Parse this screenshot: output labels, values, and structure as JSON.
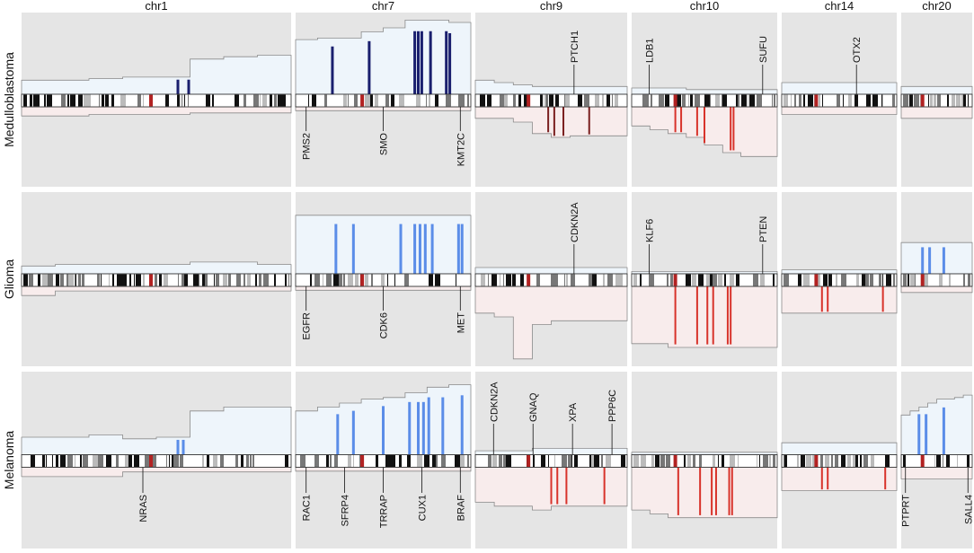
{
  "chart_data": {
    "type": "copy-number-profile",
    "title": "",
    "description_axis": "gain above / loss below chromosome ideogram",
    "chromosomes": [
      "chr1",
      "chr7",
      "chr9",
      "chr10",
      "chr14",
      "chr20"
    ],
    "rows": [
      {
        "name": "Medulloblastoma",
        "gain_color": "#1a1f6e",
        "loss_color": "#7a1f1f",
        "panels": [
          {
            "chr": "chr1",
            "gain_level": [
              0.18,
              0.18,
              0.2,
              0.22,
              0.22,
              0.45,
              0.48,
              0.5
            ],
            "loss_level": [
              0.12,
              0.12,
              0.1,
              0.1,
              0.1,
              0.08,
              0.08,
              0.08
            ],
            "gain_bars": [
              0.58,
              0.62
            ],
            "loss_bars": [],
            "genes_above": [],
            "genes_below": []
          },
          {
            "chr": "chr7",
            "gain_level": [
              0.7,
              0.72,
              0.72,
              0.8,
              0.85,
              0.95,
              0.95,
              0.92
            ],
            "loss_level": [
              0.05,
              0.05,
              0.05,
              0.05,
              0.05,
              0.05,
              0.05,
              0.05
            ],
            "gain_bars": [
              0.21,
              0.42,
              0.68,
              0.7,
              0.72,
              0.77,
              0.86,
              0.88
            ],
            "loss_bars": [],
            "genes_above": [],
            "genes_below": [
              "PMS2",
              "SMO",
              "KMT2C"
            ]
          },
          {
            "chr": "chr9",
            "gain_level": [
              0.18,
              0.15,
              0.12,
              0.1,
              0.1,
              0.1,
              0.1,
              0.1
            ],
            "loss_level": [
              0.15,
              0.15,
              0.2,
              0.35,
              0.4,
              0.38,
              0.38,
              0.38
            ],
            "gain_bars": [],
            "loss_bars": [
              0.48,
              0.52,
              0.58,
              0.75
            ],
            "genes_above": [
              "PTCH1"
            ],
            "genes_below": []
          },
          {
            "chr": "chr10",
            "gain_level": [
              0.08,
              0.08,
              0.08,
              0.06,
              0.06,
              0.06,
              0.06,
              0.06
            ],
            "loss_level": [
              0.25,
              0.3,
              0.35,
              0.4,
              0.5,
              0.6,
              0.65,
              0.65
            ],
            "gain_bars": [],
            "loss_bars": [
              0.3,
              0.34,
              0.45,
              0.5,
              0.68,
              0.7
            ],
            "genes_above": [
              "LDB1",
              "SUFU"
            ],
            "genes_below": []
          },
          {
            "chr": "chr14",
            "gain_level": [
              0.15,
              0.15,
              0.15,
              0.15,
              0.15,
              0.15,
              0.15,
              0.15
            ],
            "loss_level": [
              0.1,
              0.1,
              0.1,
              0.1,
              0.1,
              0.1,
              0.1,
              0.1
            ],
            "gain_bars": [],
            "loss_bars": [],
            "genes_above": [
              "OTX2"
            ],
            "genes_below": []
          },
          {
            "chr": "chr20",
            "gain_level": [
              0.1,
              0.1,
              0.1,
              0.1,
              0.1,
              0.1,
              0.1,
              0.1
            ],
            "loss_level": [
              0.15,
              0.15,
              0.15,
              0.15,
              0.15,
              0.15,
              0.15,
              0.15
            ],
            "gain_bars": [],
            "loss_bars": [],
            "genes_above": [],
            "genes_below": []
          }
        ]
      },
      {
        "name": "Glioma",
        "gain_color": "#5b8de8",
        "loss_color": "#7a1f1f",
        "panels": [
          {
            "chr": "chr1",
            "gain_level": [
              0.1,
              0.12,
              0.12,
              0.12,
              0.12,
              0.15,
              0.15,
              0.12
            ],
            "loss_level": [
              0.12,
              0.06,
              0.06,
              0.06,
              0.06,
              0.06,
              0.06,
              0.06
            ],
            "gain_bars": [],
            "loss_bars": [],
            "genes_above": [],
            "genes_below": []
          },
          {
            "chr": "chr7",
            "gain_level": [
              0.75,
              0.75,
              0.75,
              0.75,
              0.75,
              0.75,
              0.75,
              0.75
            ],
            "loss_level": [
              0.05,
              0.05,
              0.05,
              0.05,
              0.05,
              0.05,
              0.05,
              0.05
            ],
            "gain_bars": [
              0.23,
              0.33,
              0.6,
              0.68,
              0.71,
              0.74,
              0.78,
              0.93,
              0.95
            ],
            "loss_bars": [],
            "genes_above": [],
            "genes_below": [
              "EGFR",
              "CDK6",
              "MET"
            ]
          },
          {
            "chr": "chr9",
            "gain_level": [
              0.08,
              0.08,
              0.08,
              0.08,
              0.08,
              0.08,
              0.08,
              0.08
            ],
            "loss_level": [
              0.35,
              0.4,
              0.95,
              0.5,
              0.45,
              0.45,
              0.45,
              0.45
            ],
            "gain_bars": [],
            "loss_bars": [],
            "genes_above": [
              "CDKN2A"
            ],
            "genes_below": []
          },
          {
            "chr": "chr10",
            "gain_level": [
              0.03,
              0.03,
              0.03,
              0.03,
              0.03,
              0.03,
              0.03,
              0.03
            ],
            "loss_level": [
              0.75,
              0.75,
              0.8,
              0.8,
              0.8,
              0.8,
              0.8,
              0.8
            ],
            "gain_bars": [],
            "loss_bars": [
              0.3,
              0.45,
              0.52,
              0.56,
              0.66,
              0.68
            ],
            "genes_above": [
              "KLF6",
              "PTEN"
            ],
            "genes_below": []
          },
          {
            "chr": "chr14",
            "gain_level": [
              0.05,
              0.05,
              0.05,
              0.05,
              0.05,
              0.05,
              0.05,
              0.05
            ],
            "loss_level": [
              0.35,
              0.35,
              0.35,
              0.35,
              0.35,
              0.35,
              0.35,
              0.35
            ],
            "gain_bars": [],
            "loss_bars": [
              0.35,
              0.4,
              0.88
            ],
            "genes_above": [],
            "genes_below": []
          },
          {
            "chr": "chr20",
            "gain_level": [
              0.4,
              0.4,
              0.4,
              0.4,
              0.4,
              0.4,
              0.4,
              0.4
            ],
            "loss_level": [
              0.08,
              0.08,
              0.08,
              0.08,
              0.08,
              0.08,
              0.08,
              0.08
            ],
            "gain_bars": [
              0.3,
              0.4,
              0.6
            ],
            "loss_bars": [],
            "genes_above": [],
            "genes_below": []
          }
        ]
      },
      {
        "name": "Melanoma",
        "gain_color": "#5b8de8",
        "loss_color": "#7a1f1f",
        "panels": [
          {
            "chr": "chr1",
            "gain_level": [
              0.22,
              0.22,
              0.25,
              0.2,
              0.22,
              0.55,
              0.6,
              0.6
            ],
            "loss_level": [
              0.12,
              0.12,
              0.12,
              0.06,
              0.06,
              0.06,
              0.06,
              0.06
            ],
            "gain_bars": [
              0.58,
              0.6
            ],
            "loss_bars": [],
            "genes_above": [],
            "genes_below": [
              "NRAS"
            ]
          },
          {
            "chr": "chr7",
            "gain_level": [
              0.55,
              0.6,
              0.65,
              0.7,
              0.72,
              0.78,
              0.85,
              0.88
            ],
            "loss_level": [
              0.05,
              0.05,
              0.05,
              0.05,
              0.05,
              0.05,
              0.05,
              0.05
            ],
            "gain_bars": [
              0.24,
              0.33,
              0.5,
              0.65,
              0.7,
              0.73,
              0.76,
              0.84,
              0.95
            ],
            "loss_bars": [],
            "genes_above": [],
            "genes_below": [
              "RAC1",
              "SFRP4",
              "TRRAP",
              "CUX1",
              "BRAF"
            ]
          },
          {
            "chr": "chr9",
            "gain_level": [
              0.05,
              0.05,
              0.05,
              0.08,
              0.08,
              0.08,
              0.08,
              0.08
            ],
            "loss_level": [
              0.45,
              0.5,
              0.5,
              0.55,
              0.5,
              0.5,
              0.5,
              0.5
            ],
            "gain_bars": [],
            "loss_bars": [
              0.5,
              0.54,
              0.6,
              0.85
            ],
            "genes_above": [
              "CDKN2A",
              "GNAQ",
              "XPA",
              "PPP6C"
            ],
            "genes_below": []
          },
          {
            "chr": "chr10",
            "gain_level": [
              0.03,
              0.03,
              0.03,
              0.03,
              0.03,
              0.03,
              0.03,
              0.03
            ],
            "loss_level": [
              0.55,
              0.6,
              0.65,
              0.65,
              0.65,
              0.65,
              0.65,
              0.65
            ],
            "gain_bars": [],
            "loss_bars": [
              0.32,
              0.47,
              0.55,
              0.58,
              0.67,
              0.69
            ],
            "genes_above": [],
            "genes_below": []
          },
          {
            "chr": "chr14",
            "gain_level": [
              0.15,
              0.15,
              0.15,
              0.15,
              0.15,
              0.15,
              0.15,
              0.15
            ],
            "loss_level": [
              0.3,
              0.3,
              0.3,
              0.3,
              0.3,
              0.3,
              0.3,
              0.3
            ],
            "gain_bars": [],
            "loss_bars": [
              0.35,
              0.4,
              0.9
            ],
            "genes_above": [],
            "genes_below": []
          },
          {
            "chr": "chr20",
            "gain_level": [
              0.5,
              0.55,
              0.6,
              0.65,
              0.7,
              0.7,
              0.72,
              0.75
            ],
            "loss_level": [
              0.15,
              0.15,
              0.15,
              0.15,
              0.15,
              0.15,
              0.15,
              0.15
            ],
            "gain_bars": [
              0.25,
              0.35,
              0.6
            ],
            "loss_bars": [],
            "genes_above": [],
            "genes_below": [
              "PTPRT",
              "SALL4"
            ]
          }
        ]
      }
    ]
  }
}
